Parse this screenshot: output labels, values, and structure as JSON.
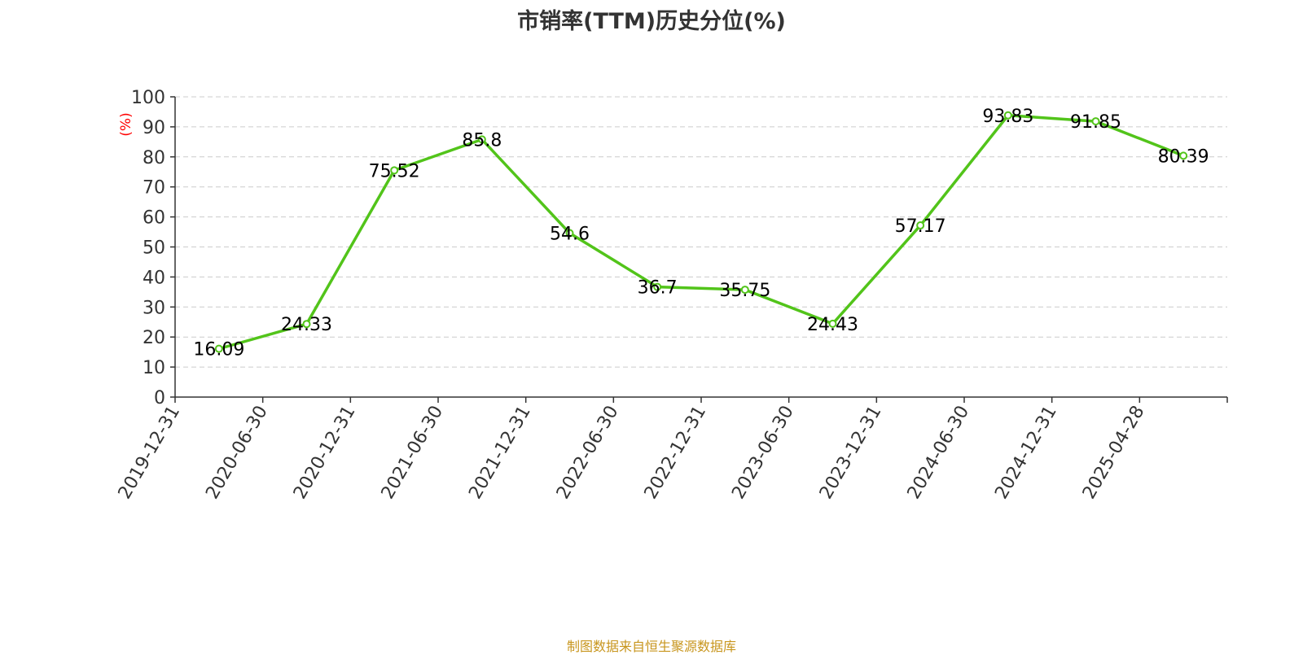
{
  "chart_data": {
    "type": "line",
    "title": "市销率(TTM)历史分位(%)",
    "ylabel": "(%)",
    "xlabel": "",
    "ylim": [
      0,
      100
    ],
    "yticks": [
      0,
      10,
      20,
      30,
      40,
      50,
      60,
      70,
      80,
      90,
      100
    ],
    "grid": true,
    "x": [
      "2019-12-31",
      "2020-06-30",
      "2020-12-31",
      "2021-06-30",
      "2021-12-31",
      "2022-06-30",
      "2022-12-31",
      "2023-06-30",
      "2023-12-31",
      "2024-06-30",
      "2024-12-31",
      "2025-04-28"
    ],
    "series": [
      {
        "values": [
          16.09,
          24.33,
          75.52,
          85.8,
          54.6,
          36.7,
          35.75,
          24.43,
          57.17,
          93.83,
          91.85,
          80.39
        ]
      }
    ],
    "colors": {
      "line": "#52c41a",
      "ylabel": "#ff0000",
      "axis": "#333333",
      "grid": "#cccccc"
    }
  },
  "footer": {
    "source": "制图数据来自恒生聚源数据库"
  }
}
